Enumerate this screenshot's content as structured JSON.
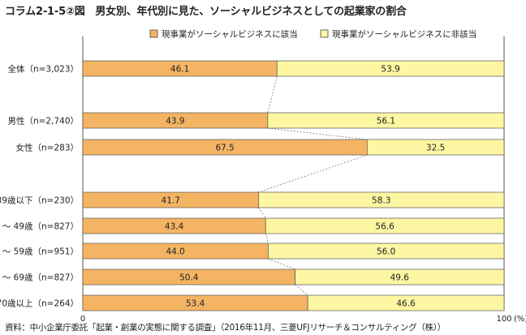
{
  "title": "コラム2-1-5②図　男女別、年代別に見た、ソーシャルビジネスとしての起業家の割合",
  "source": "資料：中小企業庁委託「起業・創業の実態に関する調査」（2016年11月、三菱UFJリサーチ＆コンサルティング（株））",
  "chart_data": {
    "type": "bar",
    "orientation": "horizontal",
    "stacked": true,
    "categories": [
      "全体（n=3,023）",
      "男性（n=2,740）",
      "女性（n=283）",
      "39歳以下（n=230）",
      "40 ～ 49歳（n=827）",
      "50 ～ 59歳（n=951）",
      "60 ～ 69歳（n=827）",
      "70歳以上（n=264）"
    ],
    "series": [
      {
        "name": "現事業がソーシャルビジネスに該当",
        "color": "#f4b463",
        "values": [
          46.1,
          43.9,
          67.5,
          41.7,
          43.4,
          44.0,
          50.4,
          53.4
        ],
        "labels": [
          "46.1",
          "43.9",
          "67.5",
          "41.7",
          "43.4",
          "44.0",
          "50.4",
          "53.4"
        ]
      },
      {
        "name": "現事業がソーシャルビジネスに非該当",
        "color": "#fdf6a3",
        "values": [
          53.9,
          56.1,
          32.5,
          58.3,
          56.6,
          56.0,
          49.6,
          46.6
        ],
        "labels": [
          "53.9",
          "56.1",
          "32.5",
          "58.3",
          "56.6",
          "56.0",
          "49.6",
          "46.6"
        ]
      }
    ],
    "xlim": [
      0,
      100
    ],
    "xticks": [
      "0",
      "100"
    ],
    "xunit": "(%)",
    "legend_position": "top",
    "connector_lines": true
  }
}
